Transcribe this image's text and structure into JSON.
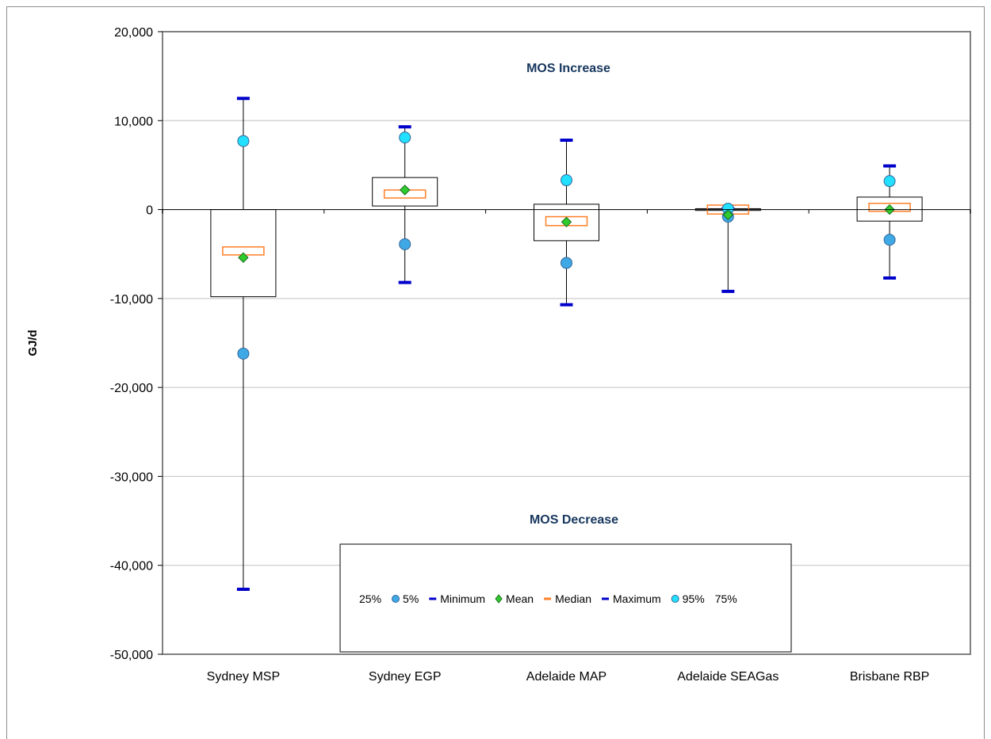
{
  "chart_data": {
    "type": "box",
    "categories": [
      "Sydney MSP",
      "Sydney EGP",
      "Adelaide MAP",
      "Adelaide SEAGas",
      "Brisbane RBP"
    ],
    "ylabel": "GJ/d",
    "ylim": [
      -50000,
      20000
    ],
    "yticks": [
      20000,
      10000,
      0,
      -10000,
      -20000,
      -30000,
      -40000,
      -50000
    ],
    "ytick_labels": [
      "20,000",
      "10,000",
      "0",
      "-10,000",
      "-20,000",
      "-30,000",
      "-40,000",
      "-50,000"
    ],
    "grid": true,
    "annotations": {
      "increase": "MOS Increase",
      "decrease": "MOS Decrease"
    },
    "legend": {
      "placement": "bottom-center",
      "entries": [
        "25%",
        "5%",
        "Minimum",
        "Mean",
        "Median",
        "Maximum",
        "95%",
        "75%"
      ]
    },
    "stats": [
      {
        "name": "Sydney MSP",
        "min": -42700,
        "p5": -16200,
        "p25": -9800,
        "median_low": -5100,
        "median_high": -4200,
        "mean": -5400,
        "p75": 0,
        "p95": 7700,
        "max": 12500
      },
      {
        "name": "Sydney EGP",
        "min": -8200,
        "p5": -3900,
        "p25": 400,
        "median_low": 1300,
        "median_high": 2200,
        "mean": 2200,
        "p75": 3600,
        "p95": 8100,
        "max": 9300
      },
      {
        "name": "Adelaide MAP",
        "min": -10700,
        "p5": -6000,
        "p25": -3500,
        "median_low": -1800,
        "median_high": -800,
        "mean": -1400,
        "p75": 600,
        "p95": 3300,
        "max": 7800
      },
      {
        "name": "Adelaide SEAGas",
        "min": -9200,
        "p5": -800,
        "p25": -100,
        "median_low": -500,
        "median_high": 500,
        "mean": -600,
        "p75": 100,
        "p95": 100,
        "max": 100
      },
      {
        "name": "Brisbane RBP",
        "min": -7700,
        "p5": -3400,
        "p25": -1300,
        "median_low": -200,
        "median_high": 700,
        "mean": 0,
        "p75": 1400,
        "p95": 3200,
        "max": 4900
      }
    ]
  },
  "colors": {
    "extreme": "#0000cc",
    "p5": "#3fa9e6",
    "p95": "#22e0ff",
    "mean": "#2ecc2e",
    "median": "#ff7f27",
    "annotation": "#17375e"
  }
}
